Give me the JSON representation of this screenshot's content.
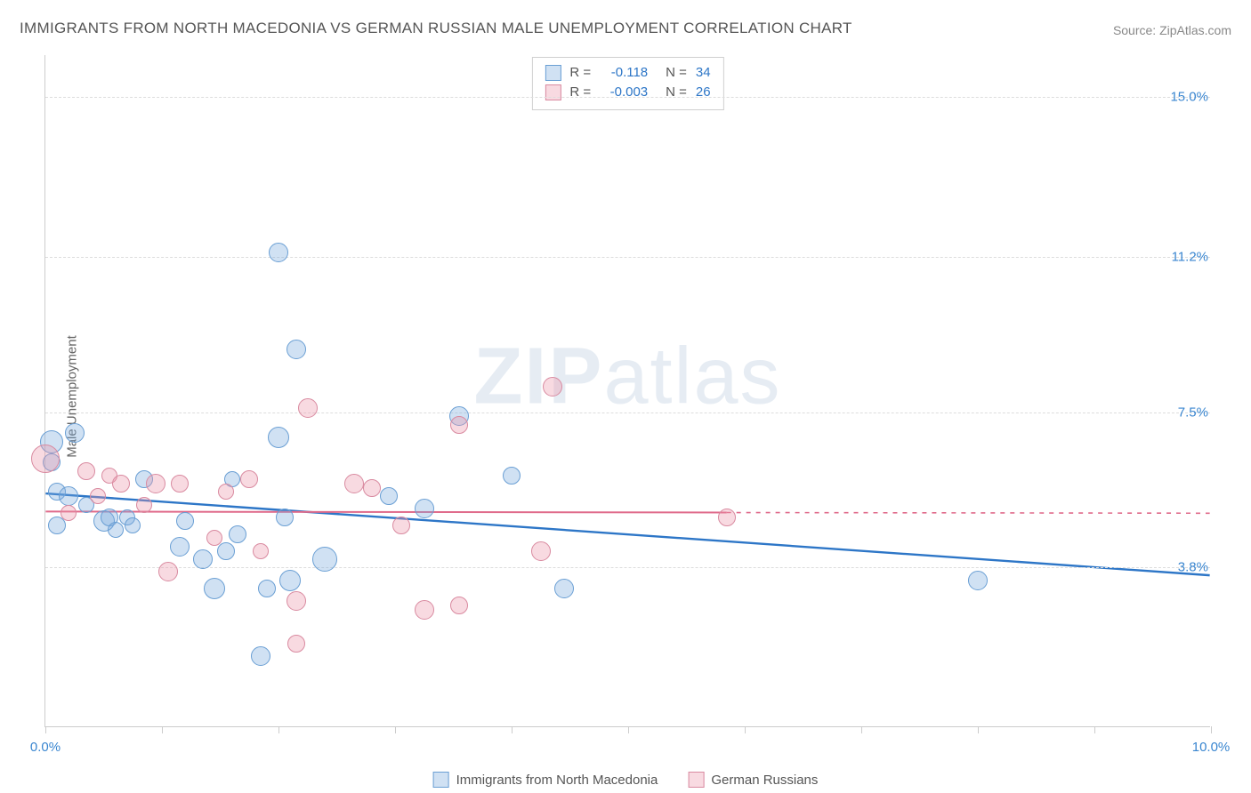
{
  "title": "IMMIGRANTS FROM NORTH MACEDONIA VS GERMAN RUSSIAN MALE UNEMPLOYMENT CORRELATION CHART",
  "source": "Source: ZipAtlas.com",
  "ylabel": "Male Unemployment",
  "watermark": {
    "light": "ZIP",
    "rest": "atlas"
  },
  "chart": {
    "type": "scatter",
    "xlim": [
      0.0,
      10.0
    ],
    "ylim": [
      0.0,
      16.0
    ],
    "x_ticks_at": [
      0.0,
      1.0,
      2.0,
      3.0,
      4.0,
      5.0,
      6.0,
      7.0,
      8.0,
      9.0,
      10.0
    ],
    "x_tick_labels": [
      {
        "x": 0.0,
        "text": "0.0%",
        "color": "#3a86d0"
      },
      {
        "x": 10.0,
        "text": "10.0%",
        "color": "#3a86d0"
      }
    ],
    "y_grid": [
      {
        "y": 3.8,
        "label": "3.8%",
        "color": "#3a86d0"
      },
      {
        "y": 7.5,
        "label": "7.5%",
        "color": "#3a86d0"
      },
      {
        "y": 11.2,
        "label": "11.2%",
        "color": "#3a86d0"
      },
      {
        "y": 15.0,
        "label": "15.0%",
        "color": "#3a86d0"
      }
    ],
    "background_color": "#ffffff",
    "grid_color": "#dddddd",
    "axis_color": "#cccccc"
  },
  "series": [
    {
      "key": "macedonia",
      "label": "Immigrants from North Macedonia",
      "color_fill": "rgba(120,170,220,0.35)",
      "color_stroke": "#6a9fd4",
      "points": [
        {
          "x": 0.05,
          "y": 6.8,
          "r": 13
        },
        {
          "x": 0.05,
          "y": 6.3,
          "r": 10
        },
        {
          "x": 0.1,
          "y": 4.8,
          "r": 10
        },
        {
          "x": 0.1,
          "y": 5.6,
          "r": 10
        },
        {
          "x": 0.2,
          "y": 5.5,
          "r": 11
        },
        {
          "x": 0.25,
          "y": 7.0,
          "r": 11
        },
        {
          "x": 0.35,
          "y": 5.3,
          "r": 9
        },
        {
          "x": 0.5,
          "y": 4.9,
          "r": 12
        },
        {
          "x": 0.55,
          "y": 5.0,
          "r": 10
        },
        {
          "x": 0.6,
          "y": 4.7,
          "r": 9
        },
        {
          "x": 0.7,
          "y": 5.0,
          "r": 9
        },
        {
          "x": 0.75,
          "y": 4.8,
          "r": 9
        },
        {
          "x": 0.85,
          "y": 5.9,
          "r": 10
        },
        {
          "x": 1.15,
          "y": 4.3,
          "r": 11
        },
        {
          "x": 1.2,
          "y": 4.9,
          "r": 10
        },
        {
          "x": 1.35,
          "y": 4.0,
          "r": 11
        },
        {
          "x": 1.45,
          "y": 3.3,
          "r": 12
        },
        {
          "x": 1.55,
          "y": 4.2,
          "r": 10
        },
        {
          "x": 1.6,
          "y": 5.9,
          "r": 9
        },
        {
          "x": 1.65,
          "y": 4.6,
          "r": 10
        },
        {
          "x": 1.85,
          "y": 1.7,
          "r": 11
        },
        {
          "x": 1.9,
          "y": 3.3,
          "r": 10
        },
        {
          "x": 2.0,
          "y": 11.3,
          "r": 11
        },
        {
          "x": 2.0,
          "y": 6.9,
          "r": 12
        },
        {
          "x": 2.05,
          "y": 5.0,
          "r": 10
        },
        {
          "x": 2.1,
          "y": 3.5,
          "r": 12
        },
        {
          "x": 2.15,
          "y": 9.0,
          "r": 11
        },
        {
          "x": 2.4,
          "y": 4.0,
          "r": 14
        },
        {
          "x": 2.95,
          "y": 5.5,
          "r": 10
        },
        {
          "x": 3.25,
          "y": 5.2,
          "r": 11
        },
        {
          "x": 3.55,
          "y": 7.4,
          "r": 11
        },
        {
          "x": 4.0,
          "y": 6.0,
          "r": 10
        },
        {
          "x": 4.45,
          "y": 3.3,
          "r": 11
        },
        {
          "x": 8.0,
          "y": 3.5,
          "r": 11
        }
      ],
      "trend": {
        "y_at_x0": 5.55,
        "y_at_xmax": 3.6,
        "color": "#2d76c7",
        "width": 2.4,
        "dash_after_x": null
      }
    },
    {
      "key": "german_russian",
      "label": "German Russians",
      "color_fill": "rgba(235,150,170,0.35)",
      "color_stroke": "#d98aa0",
      "points": [
        {
          "x": 0.0,
          "y": 6.4,
          "r": 16
        },
        {
          "x": 0.2,
          "y": 5.1,
          "r": 9
        },
        {
          "x": 0.35,
          "y": 6.1,
          "r": 10
        },
        {
          "x": 0.45,
          "y": 5.5,
          "r": 9
        },
        {
          "x": 0.55,
          "y": 6.0,
          "r": 9
        },
        {
          "x": 0.65,
          "y": 5.8,
          "r": 10
        },
        {
          "x": 0.85,
          "y": 5.3,
          "r": 9
        },
        {
          "x": 0.95,
          "y": 5.8,
          "r": 11
        },
        {
          "x": 1.05,
          "y": 3.7,
          "r": 11
        },
        {
          "x": 1.15,
          "y": 5.8,
          "r": 10
        },
        {
          "x": 1.45,
          "y": 4.5,
          "r": 9
        },
        {
          "x": 1.55,
          "y": 5.6,
          "r": 9
        },
        {
          "x": 1.75,
          "y": 5.9,
          "r": 10
        },
        {
          "x": 1.85,
          "y": 4.2,
          "r": 9
        },
        {
          "x": 2.15,
          "y": 2.0,
          "r": 10
        },
        {
          "x": 2.15,
          "y": 3.0,
          "r": 11
        },
        {
          "x": 2.25,
          "y": 7.6,
          "r": 11
        },
        {
          "x": 2.65,
          "y": 5.8,
          "r": 11
        },
        {
          "x": 2.8,
          "y": 5.7,
          "r": 10
        },
        {
          "x": 3.05,
          "y": 4.8,
          "r": 10
        },
        {
          "x": 3.25,
          "y": 2.8,
          "r": 11
        },
        {
          "x": 3.55,
          "y": 2.9,
          "r": 10
        },
        {
          "x": 3.55,
          "y": 7.2,
          "r": 10
        },
        {
          "x": 4.25,
          "y": 4.2,
          "r": 11
        },
        {
          "x": 4.35,
          "y": 8.1,
          "r": 11
        },
        {
          "x": 5.85,
          "y": 5.0,
          "r": 10
        }
      ],
      "trend": {
        "y_at_x0": 5.12,
        "y_at_xmax": 5.08,
        "color": "#e06b8b",
        "width": 2.0,
        "dash_after_x": 5.85
      }
    }
  ],
  "stats_box": {
    "rows": [
      {
        "swatch_fill": "rgba(120,170,220,0.35)",
        "swatch_stroke": "#6a9fd4",
        "r_label": "R =",
        "r_val": "-0.118",
        "n_label": "N =",
        "n_val": "34"
      },
      {
        "swatch_fill": "rgba(235,150,170,0.35)",
        "swatch_stroke": "#d98aa0",
        "r_label": "R =",
        "r_val": "-0.003",
        "n_label": "N =",
        "n_val": "26"
      }
    ],
    "value_color": "#2d76c7",
    "label_color": "#555555"
  },
  "legend_bottom": [
    {
      "swatch_fill": "rgba(120,170,220,0.35)",
      "swatch_stroke": "#6a9fd4",
      "label": "Immigrants from North Macedonia"
    },
    {
      "swatch_fill": "rgba(235,150,170,0.35)",
      "swatch_stroke": "#d98aa0",
      "label": "German Russians"
    }
  ]
}
